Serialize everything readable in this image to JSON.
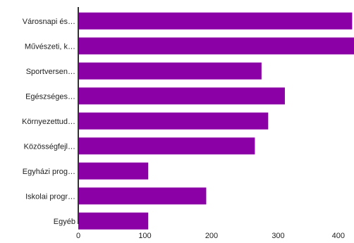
{
  "chart_data": {
    "type": "bar",
    "orientation": "horizontal",
    "categories": [
      "Városnapi és…",
      "Művészeti, k…",
      "Sportversen…",
      "Egészséges…",
      "Környezettud…",
      "Közösségfejl…",
      "Egyházi prog…",
      "Iskolai progr…",
      "Egyéb"
    ],
    "values": [
      411,
      418,
      275,
      310,
      285,
      265,
      105,
      192,
      105
    ],
    "xlim": [
      0,
      400
    ],
    "xticks": [
      "0",
      "100",
      "200",
      "300",
      "400"
    ],
    "grid": false,
    "colors": {
      "bar": "#8b00a6",
      "axis": "#333333",
      "tick_text": "#222222"
    }
  }
}
